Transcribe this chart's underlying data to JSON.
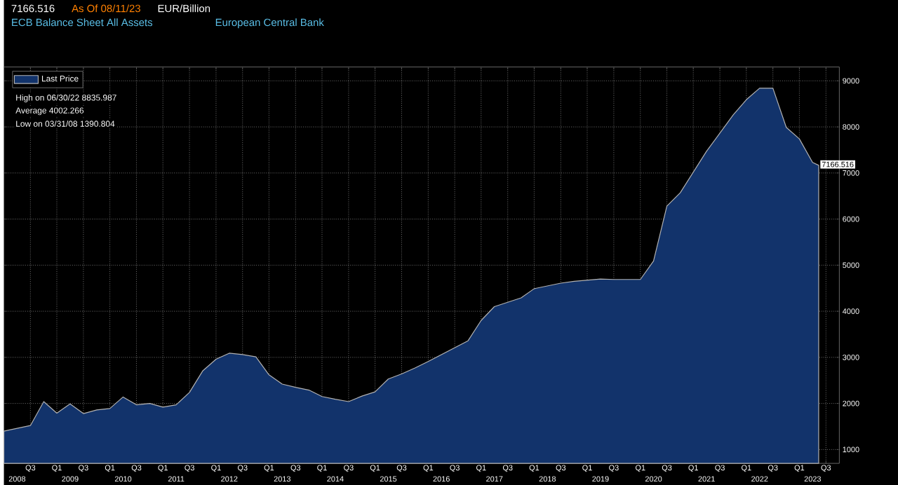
{
  "chart_data": {
    "type": "area",
    "title": "ECB Balance Sheet All Assets",
    "subtitle": "European Central Bank",
    "annotations": [
      "7166.516",
      "As Of 08/11/23",
      "EUR/Billion",
      "High on 06/30/22 8835.987",
      "Average 4002.266",
      "Low on 03/31/08 1390.804",
      {
        "text": "7166.516",
        "x": "2023-08-11",
        "y": 7166.516
      },
      "2008",
      "2009",
      "2010",
      "2011",
      "2012",
      "2013",
      "2014",
      "2015",
      "2016",
      "2017",
      "2018",
      "2019",
      "2020",
      "2021",
      "2022",
      "2023"
    ],
    "legend": "top left",
    "grid": true,
    "xlim": [
      "2008-03-31",
      "2023-12-31"
    ],
    "ylim": [
      700,
      9300
    ],
    "yticks": [
      1000,
      2000,
      3000,
      4000,
      5000,
      6000,
      7000,
      8000,
      9000
    ],
    "xticks": [
      {
        "value": "2008-09-30",
        "label": "Q3"
      },
      {
        "value": "2009-03-31",
        "label": "Q1"
      },
      {
        "value": "2009-09-30",
        "label": "Q3"
      },
      {
        "value": "2010-03-31",
        "label": "Q1"
      },
      {
        "value": "2010-09-30",
        "label": "Q3"
      },
      {
        "value": "2011-03-31",
        "label": "Q1"
      },
      {
        "value": "2011-09-30",
        "label": "Q3"
      },
      {
        "value": "2012-03-31",
        "label": "Q1"
      },
      {
        "value": "2012-09-30",
        "label": "Q3"
      },
      {
        "value": "2013-03-31",
        "label": "Q1"
      },
      {
        "value": "2013-09-30",
        "label": "Q3"
      },
      {
        "value": "2014-03-31",
        "label": "Q1"
      },
      {
        "value": "2014-09-30",
        "label": "Q3"
      },
      {
        "value": "2015-03-31",
        "label": "Q1"
      },
      {
        "value": "2015-09-30",
        "label": "Q3"
      },
      {
        "value": "2016-03-31",
        "label": "Q1"
      },
      {
        "value": "2016-09-30",
        "label": "Q3"
      },
      {
        "value": "2017-03-31",
        "label": "Q1"
      },
      {
        "value": "2017-09-30",
        "label": "Q3"
      },
      {
        "value": "2018-03-31",
        "label": "Q1"
      },
      {
        "value": "2018-09-30",
        "label": "Q3"
      },
      {
        "value": "2019-03-31",
        "label": "Q1"
      },
      {
        "value": "2019-09-30",
        "label": "Q3"
      },
      {
        "value": "2020-03-31",
        "label": "Q1"
      },
      {
        "value": "2020-09-30",
        "label": "Q3"
      },
      {
        "value": "2021-03-31",
        "label": "Q1"
      },
      {
        "value": "2021-09-30",
        "label": "Q3"
      },
      {
        "value": "2022-03-31",
        "label": "Q1"
      },
      {
        "value": "2022-09-30",
        "label": "Q3"
      },
      {
        "value": "2023-03-31",
        "label": "Q1"
      },
      {
        "value": "2023-09-30",
        "label": "Q3"
      }
    ],
    "series": [
      {
        "name": "Last Price",
        "color": "#12336b",
        "x": [
          "2008-03-31",
          "2008-09-30",
          "2008-12-31",
          "2009-03-31",
          "2009-06-30",
          "2009-09-30",
          "2009-12-31",
          "2010-03-31",
          "2010-06-30",
          "2010-09-30",
          "2010-12-31",
          "2011-03-31",
          "2011-06-30",
          "2011-09-30",
          "2011-12-31",
          "2012-03-31",
          "2012-06-30",
          "2012-09-30",
          "2012-12-31",
          "2013-03-31",
          "2013-06-30",
          "2013-09-30",
          "2013-12-31",
          "2014-03-31",
          "2014-06-30",
          "2014-09-30",
          "2014-12-31",
          "2015-03-31",
          "2015-06-30",
          "2015-09-30",
          "2015-12-31",
          "2016-03-31",
          "2016-12-31",
          "2017-03-31",
          "2017-06-30",
          "2017-12-31",
          "2018-03-31",
          "2018-09-30",
          "2018-12-31",
          "2019-06-30",
          "2019-09-30",
          "2020-03-31",
          "2020-06-30",
          "2020-09-30",
          "2020-12-31",
          "2021-06-30",
          "2021-12-31",
          "2022-03-31",
          "2022-06-30",
          "2022-09-30",
          "2022-12-31",
          "2023-03-31",
          "2023-06-30",
          "2023-08-11"
        ],
        "values": [
          1400,
          1520,
          2040,
          1790,
          1990,
          1780,
          1860,
          1890,
          2140,
          1970,
          2000,
          1920,
          1970,
          2240,
          2710,
          2960,
          3090,
          3060,
          3010,
          2620,
          2420,
          2350,
          2290,
          2150,
          2090,
          2040,
          2160,
          2250,
          2530,
          2640,
          2770,
          2910,
          3360,
          3800,
          4100,
          4290,
          4490,
          4610,
          4650,
          4700,
          4690,
          4690,
          5090,
          6280,
          6570,
          7470,
          8260,
          8590,
          8840,
          8840,
          7990,
          7740,
          7230,
          7166.516
        ]
      }
    ]
  }
}
